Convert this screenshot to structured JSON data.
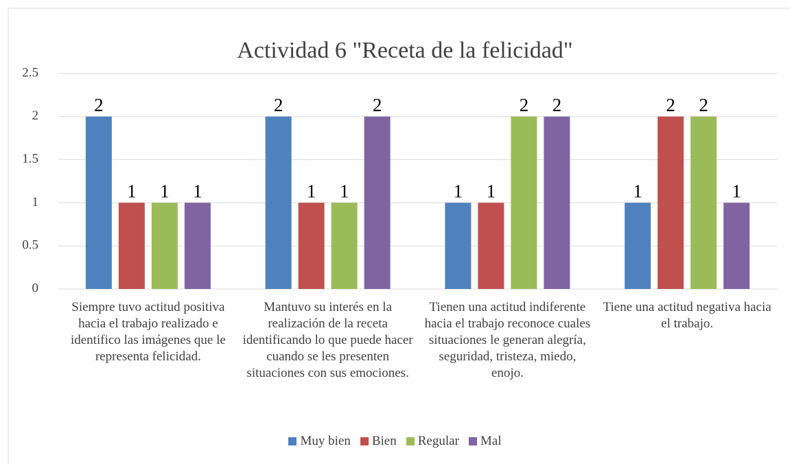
{
  "chart_data": {
    "type": "bar",
    "title": "Actividad 6 \"Receta de la felicidad\"",
    "categories": [
      "Siempre tuvo actitud positiva hacia el trabajo realizado e identifico las imágenes que le representa felicidad.",
      "Mantuvo su interés en la realización de la receta identificando lo que puede hacer cuando se les presenten situaciones con sus emociones.",
      "Tienen una actitud indiferente hacia el trabajo reconoce cuales situaciones le generan alegría, seguridad, tristeza, miedo, enojo.",
      "Tiene una actitud negativa hacia el trabajo."
    ],
    "series": [
      {
        "name": "Muy bien",
        "color": "#4f81bd",
        "values": [
          2,
          2,
          1,
          1
        ]
      },
      {
        "name": "Bien",
        "color": "#c0504d",
        "values": [
          1,
          1,
          1,
          2
        ]
      },
      {
        "name": "Regular",
        "color": "#9bbb59",
        "values": [
          1,
          1,
          2,
          2
        ]
      },
      {
        "name": "Mal",
        "color": "#8064a2",
        "values": [
          1,
          2,
          2,
          1
        ]
      }
    ],
    "ylim": [
      0,
      2.5
    ],
    "yticks": [
      0,
      0.5,
      1,
      1.5,
      2,
      2.5
    ],
    "grid": true,
    "legend": "bottom"
  }
}
